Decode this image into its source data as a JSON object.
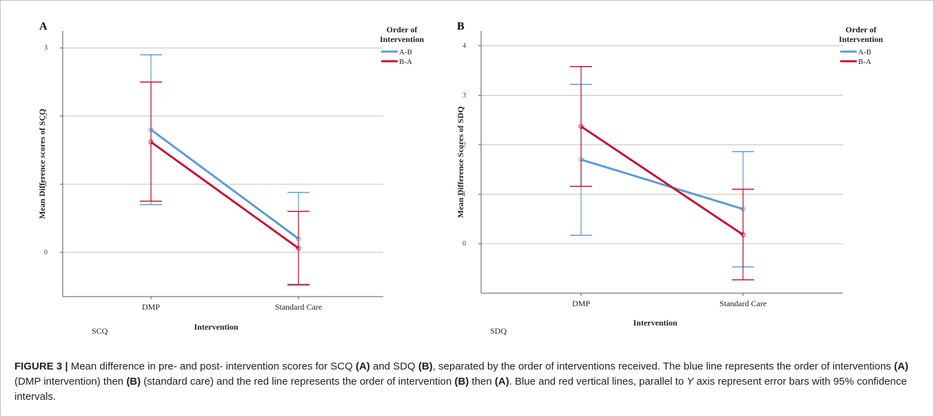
{
  "colors": {
    "blue": "#5b9bd5",
    "red": "#c8102e",
    "grid": "#c0c0c0",
    "axis": "#555555"
  },
  "chart_data": [
    {
      "type": "line",
      "panel_label": "A",
      "corner_label": "SCQ",
      "xlabel": "Intervention",
      "ylabel": "Mean Difference scores of SCQ",
      "categories": [
        "DMP",
        "Standard Care"
      ],
      "yticks": [
        0,
        1,
        2,
        3
      ],
      "ylim": [
        -0.65,
        3.25
      ],
      "grid": "horizontal",
      "legend": {
        "title_lines": [
          "Order of",
          "Intervention"
        ],
        "position": "right"
      },
      "series": [
        {
          "name": "A-B",
          "color": "#5b9bd5",
          "values": [
            1.8,
            0.2
          ],
          "ci_low": [
            0.7,
            -0.47
          ],
          "ci_high": [
            2.9,
            0.88
          ]
        },
        {
          "name": "B-A",
          "color": "#c8102e",
          "values": [
            1.62,
            0.06
          ],
          "ci_low": [
            0.75,
            -0.48
          ],
          "ci_high": [
            2.5,
            0.6
          ]
        }
      ]
    },
    {
      "type": "line",
      "panel_label": "B",
      "corner_label": "SDQ",
      "xlabel": "Intervention",
      "ylabel": "Mean Difference Scores of SDQ",
      "categories": [
        "DMP",
        "Standard Care"
      ],
      "yticks": [
        0,
        1,
        2,
        3,
        4
      ],
      "ylim": [
        -1.0,
        4.3
      ],
      "grid": "horizontal",
      "legend": {
        "title_lines": [
          "Order of",
          "Intervention"
        ],
        "position": "right"
      },
      "series": [
        {
          "name": "A-B",
          "color": "#5b9bd5",
          "values": [
            1.7,
            0.7
          ],
          "ci_low": [
            0.17,
            -0.47
          ],
          "ci_high": [
            3.22,
            1.86
          ]
        },
        {
          "name": "B-A",
          "color": "#c8102e",
          "values": [
            2.37,
            0.18
          ],
          "ci_low": [
            1.16,
            -0.73
          ],
          "ci_high": [
            3.58,
            1.1
          ]
        }
      ]
    }
  ],
  "caption": {
    "figure_label": "FIGURE 3 |",
    "t1": " Mean difference in pre- and post- intervention scores for SCQ ",
    "b1": "(A)",
    "t2": " and SDQ ",
    "b2": "(B)",
    "t3": ", separated by the order of interventions received. The blue line represents the order of interventions ",
    "b3": "(A)",
    "t4": " (DMP intervention) then ",
    "b4": "(B)",
    "t5": " (standard care) and the red line represents the order of intervention ",
    "b5": "(B)",
    "t6": " then ",
    "b6": "(A)",
    "t7": ". Blue and red vertical lines, parallel to ",
    "i1": "Y",
    "t8": " axis represent error bars with 95% confidence intervals."
  }
}
